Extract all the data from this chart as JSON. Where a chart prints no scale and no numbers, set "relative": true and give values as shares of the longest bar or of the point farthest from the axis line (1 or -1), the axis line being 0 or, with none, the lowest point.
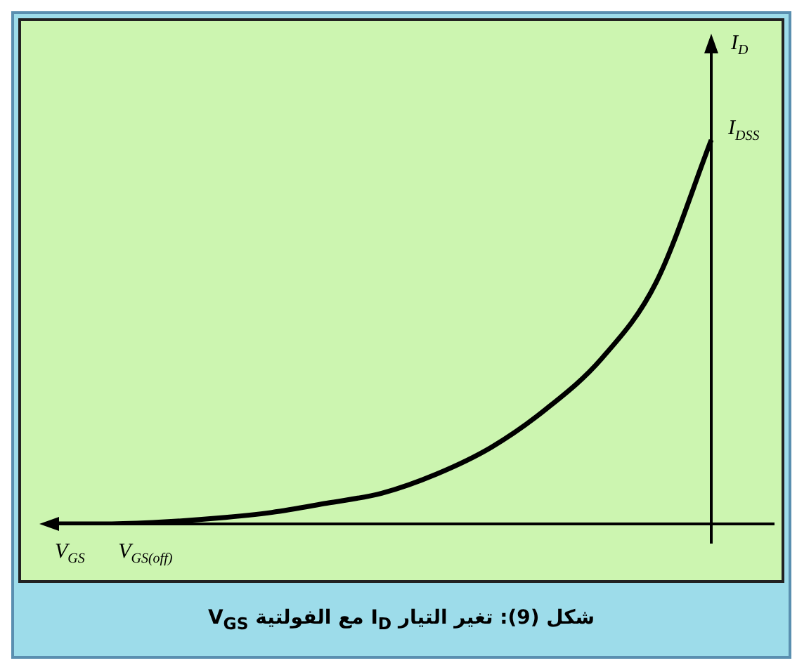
{
  "chart_data": {
    "type": "line",
    "title": "شكل (9): تغير التيار I$_{D}$ مع الفولتية V$_{GS}$",
    "xlabel": "V$_{GS}$",
    "ylabel": "I$_{D}$",
    "relative": true,
    "marker": "none",
    "categories": [
      null,
      null,
      null,
      null,
      null,
      null,
      null,
      null,
      null,
      null,
      null,
      null,
      null
    ],
    "series": [
      {
        "color": "#000000",
        "values": [
          0,
          0,
          0.005,
          0.015,
          0.03,
          0.054,
          0.08,
          0.13,
          0.2,
          0.3,
          0.43,
          0.63,
          1
        ]
      }
    ],
    "annotations": [
      "I$_{DSS}$",
      "V$_{GS(off)}$"
    ]
  }
}
